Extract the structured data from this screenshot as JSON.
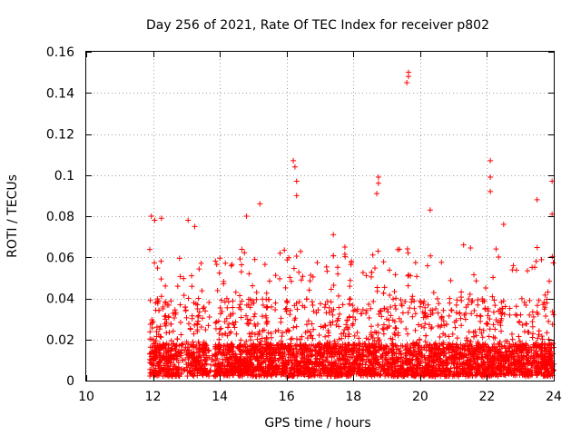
{
  "chart_data": {
    "type": "scatter",
    "title": "Day 256 of 2021, Rate Of TEC Index for receiver p802",
    "xlabel": "GPS time / hours",
    "ylabel": "ROTI / TECUs",
    "xlim": [
      10,
      24
    ],
    "ylim": [
      0,
      0.16
    ],
    "xticks": [
      "10",
      "12",
      "14",
      "16",
      "18",
      "20",
      "22",
      "24"
    ],
    "yticks": [
      "0",
      "0.02",
      "0.04",
      "0.06",
      "0.08",
      "0.1",
      "0.12",
      "0.14",
      "0.16"
    ],
    "grid": true,
    "marker": "+",
    "color": "#ff0000",
    "series": [
      {
        "name": "ROTI",
        "x_range": [
          11.9,
          24.0
        ],
        "y_typical": [
          0.0,
          0.04
        ],
        "notable_points": [
          {
            "x": 11.95,
            "y": 0.08
          },
          {
            "x": 12.05,
            "y": 0.078
          },
          {
            "x": 12.25,
            "y": 0.079
          },
          {
            "x": 13.05,
            "y": 0.078
          },
          {
            "x": 13.25,
            "y": 0.075
          },
          {
            "x": 14.8,
            "y": 0.08
          },
          {
            "x": 15.2,
            "y": 0.086
          },
          {
            "x": 16.2,
            "y": 0.107
          },
          {
            "x": 16.25,
            "y": 0.104
          },
          {
            "x": 16.3,
            "y": 0.097
          },
          {
            "x": 16.3,
            "y": 0.09
          },
          {
            "x": 17.4,
            "y": 0.071
          },
          {
            "x": 18.75,
            "y": 0.099
          },
          {
            "x": 18.75,
            "y": 0.096
          },
          {
            "x": 18.7,
            "y": 0.091
          },
          {
            "x": 19.65,
            "y": 0.15
          },
          {
            "x": 19.65,
            "y": 0.148
          },
          {
            "x": 19.6,
            "y": 0.145
          },
          {
            "x": 20.3,
            "y": 0.083
          },
          {
            "x": 21.3,
            "y": 0.066
          },
          {
            "x": 22.1,
            "y": 0.107
          },
          {
            "x": 22.1,
            "y": 0.099
          },
          {
            "x": 22.1,
            "y": 0.092
          },
          {
            "x": 22.5,
            "y": 0.076
          },
          {
            "x": 23.5,
            "y": 0.088
          },
          {
            "x": 23.95,
            "y": 0.097
          },
          {
            "x": 23.95,
            "y": 0.081
          }
        ]
      }
    ]
  }
}
